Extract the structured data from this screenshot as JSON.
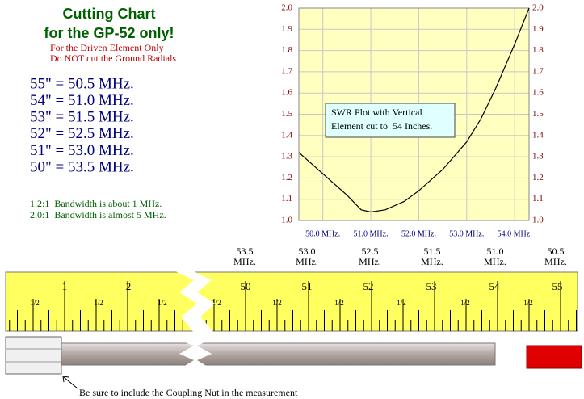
{
  "header": {
    "title": "Cutting Chart",
    "subtitle": "for the GP-52 only!",
    "notes": [
      "For the Driven Element Only",
      "Do NOT cut the Ground Radials"
    ]
  },
  "lengths": [
    "55\" = 50.5  MHz.",
    "54\" = 51.0  MHz.",
    "53\" = 51.5  MHz.",
    "52\" = 52.5  MHz.",
    "51\" = 53.0  MHz.",
    "50\" = 53.5  MHz."
  ],
  "bandwidth": [
    "1.2:1  Bandwidth is about 1 MHz.",
    "2.0:1  Bandwidth is almost 5 MHz."
  ],
  "chart_data": {
    "type": "line",
    "annotation": "SWR Plot with Vertical Element cut to  54 Inches.",
    "x": [
      49.5,
      50.0,
      50.5,
      50.8,
      51.0,
      51.3,
      51.7,
      52.0,
      52.5,
      53.0,
      53.3,
      53.6,
      54.0,
      54.3
    ],
    "values": [
      1.32,
      1.22,
      1.12,
      1.05,
      1.04,
      1.05,
      1.09,
      1.14,
      1.24,
      1.37,
      1.48,
      1.62,
      1.83,
      2.0
    ],
    "color": "#000000",
    "background": "#ffffc0",
    "grid": true,
    "xlim": [
      49.5,
      54.3
    ],
    "ylim": [
      1.0,
      2.0
    ],
    "xticks": [
      {
        "value": 50,
        "label": "50.0 MHz."
      },
      {
        "value": 51,
        "label": "51.0 MHz."
      },
      {
        "value": 52,
        "label": "52.0 MHz."
      },
      {
        "value": 53,
        "label": "53.0 MHz."
      },
      {
        "value": 54,
        "label": "54.0 MHz."
      }
    ],
    "yticks": [
      {
        "value": 1,
        "label": "1.0"
      },
      1.1,
      1.2,
      1.3,
      1.4,
      1.5,
      1.6,
      1.7,
      1.8,
      1.9,
      {
        "value": 2,
        "label": "2.0"
      }
    ]
  },
  "ruler": {
    "frequencies": [
      "53.5",
      "53.0",
      "52.5",
      "51.5",
      "51.0",
      "50.5"
    ],
    "unit": "MHz.",
    "inches": [
      "1",
      "2",
      "50",
      "51",
      "52",
      "53",
      "54",
      "55"
    ],
    "half_label": "1/2"
  },
  "footnote": "Be sure to include the Coupling Nut in the measurement"
}
